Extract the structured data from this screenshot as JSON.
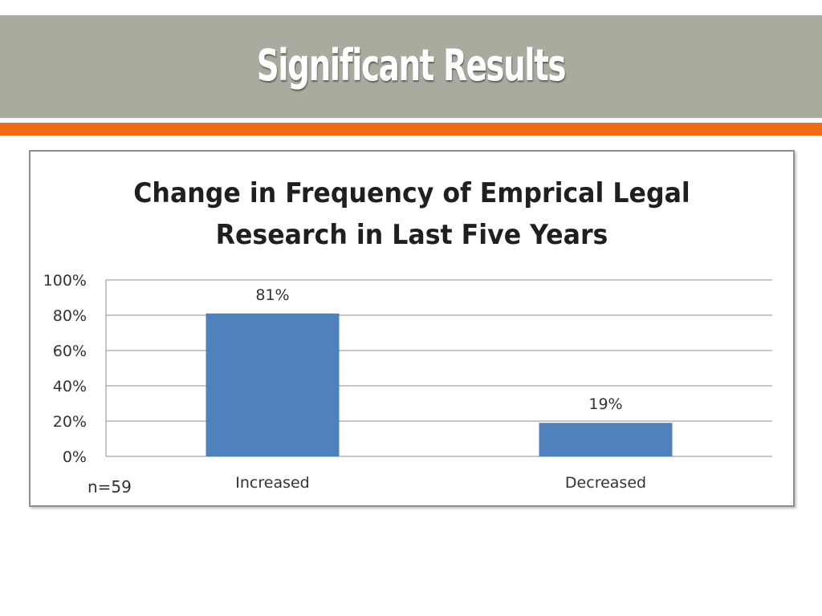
{
  "slide": {
    "title": "Significant Results",
    "note": "n=59"
  },
  "colors": {
    "title_band": "#a8ac9f",
    "accent_bar": "#ef6a10",
    "bar": "#4f81bd"
  },
  "chart_data": {
    "type": "bar",
    "title_lines": [
      "Change in Frequency of Emprical Legal",
      "Research in Last Five Years"
    ],
    "categories": [
      "Increased",
      "Decreased"
    ],
    "values": [
      81,
      19
    ],
    "data_labels": [
      "81%",
      "19%"
    ],
    "ylim": [
      0,
      100
    ],
    "yticks": [
      0,
      20,
      40,
      60,
      80,
      100
    ],
    "ytick_labels": [
      "0%",
      "20%",
      "40%",
      "60%",
      "80%",
      "100%"
    ],
    "grid": true,
    "legend": "none"
  }
}
